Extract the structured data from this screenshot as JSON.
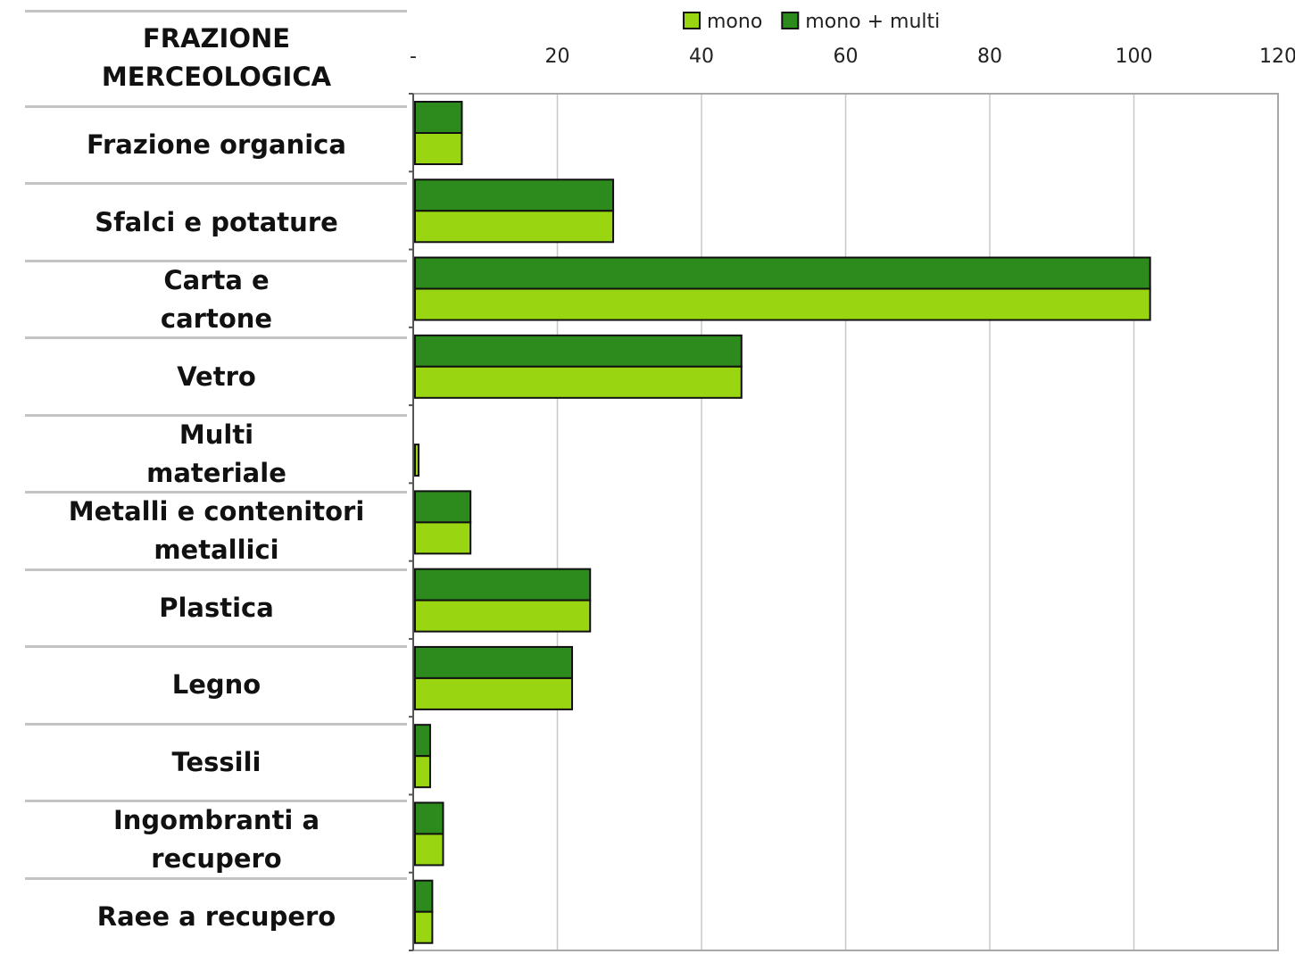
{
  "chart_data": {
    "type": "bar",
    "orientation": "horizontal",
    "category_header": "FRAZIONE\nMERCEOLOGICA",
    "categories": [
      "Frazione organica",
      "Sfalci e potature",
      "Carta e\ncartone",
      "Vetro",
      "Multi\nmateriale",
      "Metalli e contenitori\nmetallici",
      "Plastica",
      "Legno",
      "Tessili",
      "Ingombranti  a\nrecupero",
      "Raee a recupero"
    ],
    "series": [
      {
        "name": "mono",
        "color": "#99d611",
        "values": [
          6.5,
          27.5,
          102,
          45.3,
          0.5,
          7.7,
          24.3,
          21.8,
          2.1,
          3.9,
          2.4
        ]
      },
      {
        "name": "mono + multi",
        "color": "#2d8a1c",
        "values": [
          6.5,
          27.5,
          102,
          45.3,
          0,
          7.7,
          24.3,
          21.8,
          2.1,
          3.9,
          2.4
        ]
      }
    ],
    "xlim": [
      0,
      120
    ],
    "xticks": [
      {
        "value": 0,
        "label": "-"
      },
      20,
      40,
      60,
      80,
      100,
      120
    ],
    "grid": true,
    "legend": "top"
  }
}
